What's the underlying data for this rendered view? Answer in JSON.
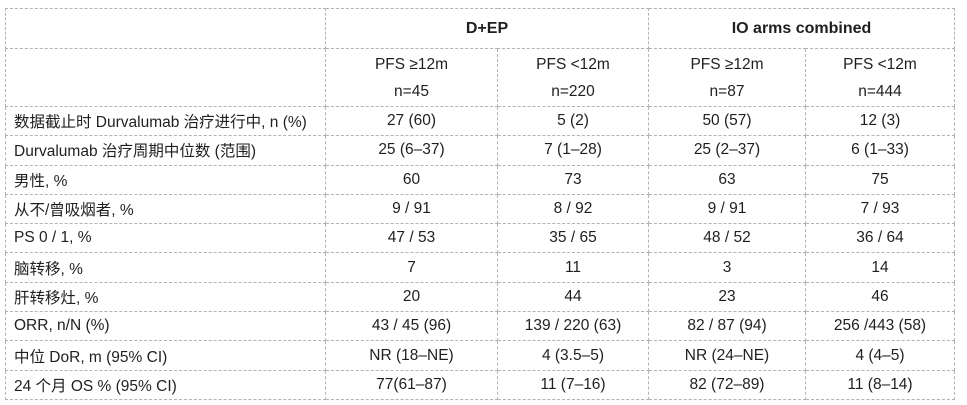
{
  "chart_data": {
    "type": "table",
    "group_headers": [
      {
        "label": "D+EP",
        "span": 2
      },
      {
        "label": "IO arms combined",
        "span": 2
      }
    ],
    "sub_headers": [
      {
        "pfs": "PFS ≥12m",
        "n": "n=45"
      },
      {
        "pfs": "PFS <12m",
        "n": "n=220"
      },
      {
        "pfs": "PFS ≥12m",
        "n": "n=87"
      },
      {
        "pfs": "PFS <12m",
        "n": "n=444"
      }
    ],
    "rows": [
      {
        "label": "数据截止时 Durvalumab 治疗进行中, n (%)",
        "values": [
          "27 (60)",
          "5 (2)",
          "50 (57)",
          "12 (3)"
        ]
      },
      {
        "label": "Durvalumab 治疗周期中位数 (范围)",
        "values": [
          "25 (6–37)",
          "7 (1–28)",
          "25 (2–37)",
          "6 (1–33)"
        ]
      },
      {
        "label": "男性, %",
        "values": [
          "60",
          "73",
          "63",
          "75"
        ]
      },
      {
        "label": "从不/曾吸烟者, %",
        "values": [
          "9 / 91",
          "8 / 92",
          "9 / 91",
          "7 / 93"
        ]
      },
      {
        "label": "PS 0 / 1, %",
        "values": [
          "47 / 53",
          "35 / 65",
          "48 / 52",
          "36 / 64"
        ]
      },
      {
        "label": "脑转移, %",
        "values": [
          "7",
          "11",
          "3",
          "14"
        ]
      },
      {
        "label": "肝转移灶, %",
        "values": [
          "20",
          "44",
          "23",
          "46"
        ]
      },
      {
        "label": "ORR, n/N (%)",
        "values": [
          "43 / 45 (96)",
          "139 / 220 (63)",
          "82 / 87 (94)",
          "256 /443 (58)"
        ]
      },
      {
        "label": "中位 DoR, m (95% CI)",
        "values": [
          "NR (18–NE)",
          "4 (3.5–5)",
          "NR (24–NE)",
          "4 (4–5)"
        ]
      },
      {
        "label": "24 个月 OS % (95% CI)",
        "values": [
          "77(61–87)",
          "11 (7–16)",
          "82 (72–89)",
          "11 (8–14)"
        ]
      }
    ],
    "layout": {
      "grid": "dashed",
      "legend": "none"
    }
  },
  "colors": {
    "border": "#b3b3b3",
    "text": "#1f1f1f",
    "background": "#ffffff"
  }
}
